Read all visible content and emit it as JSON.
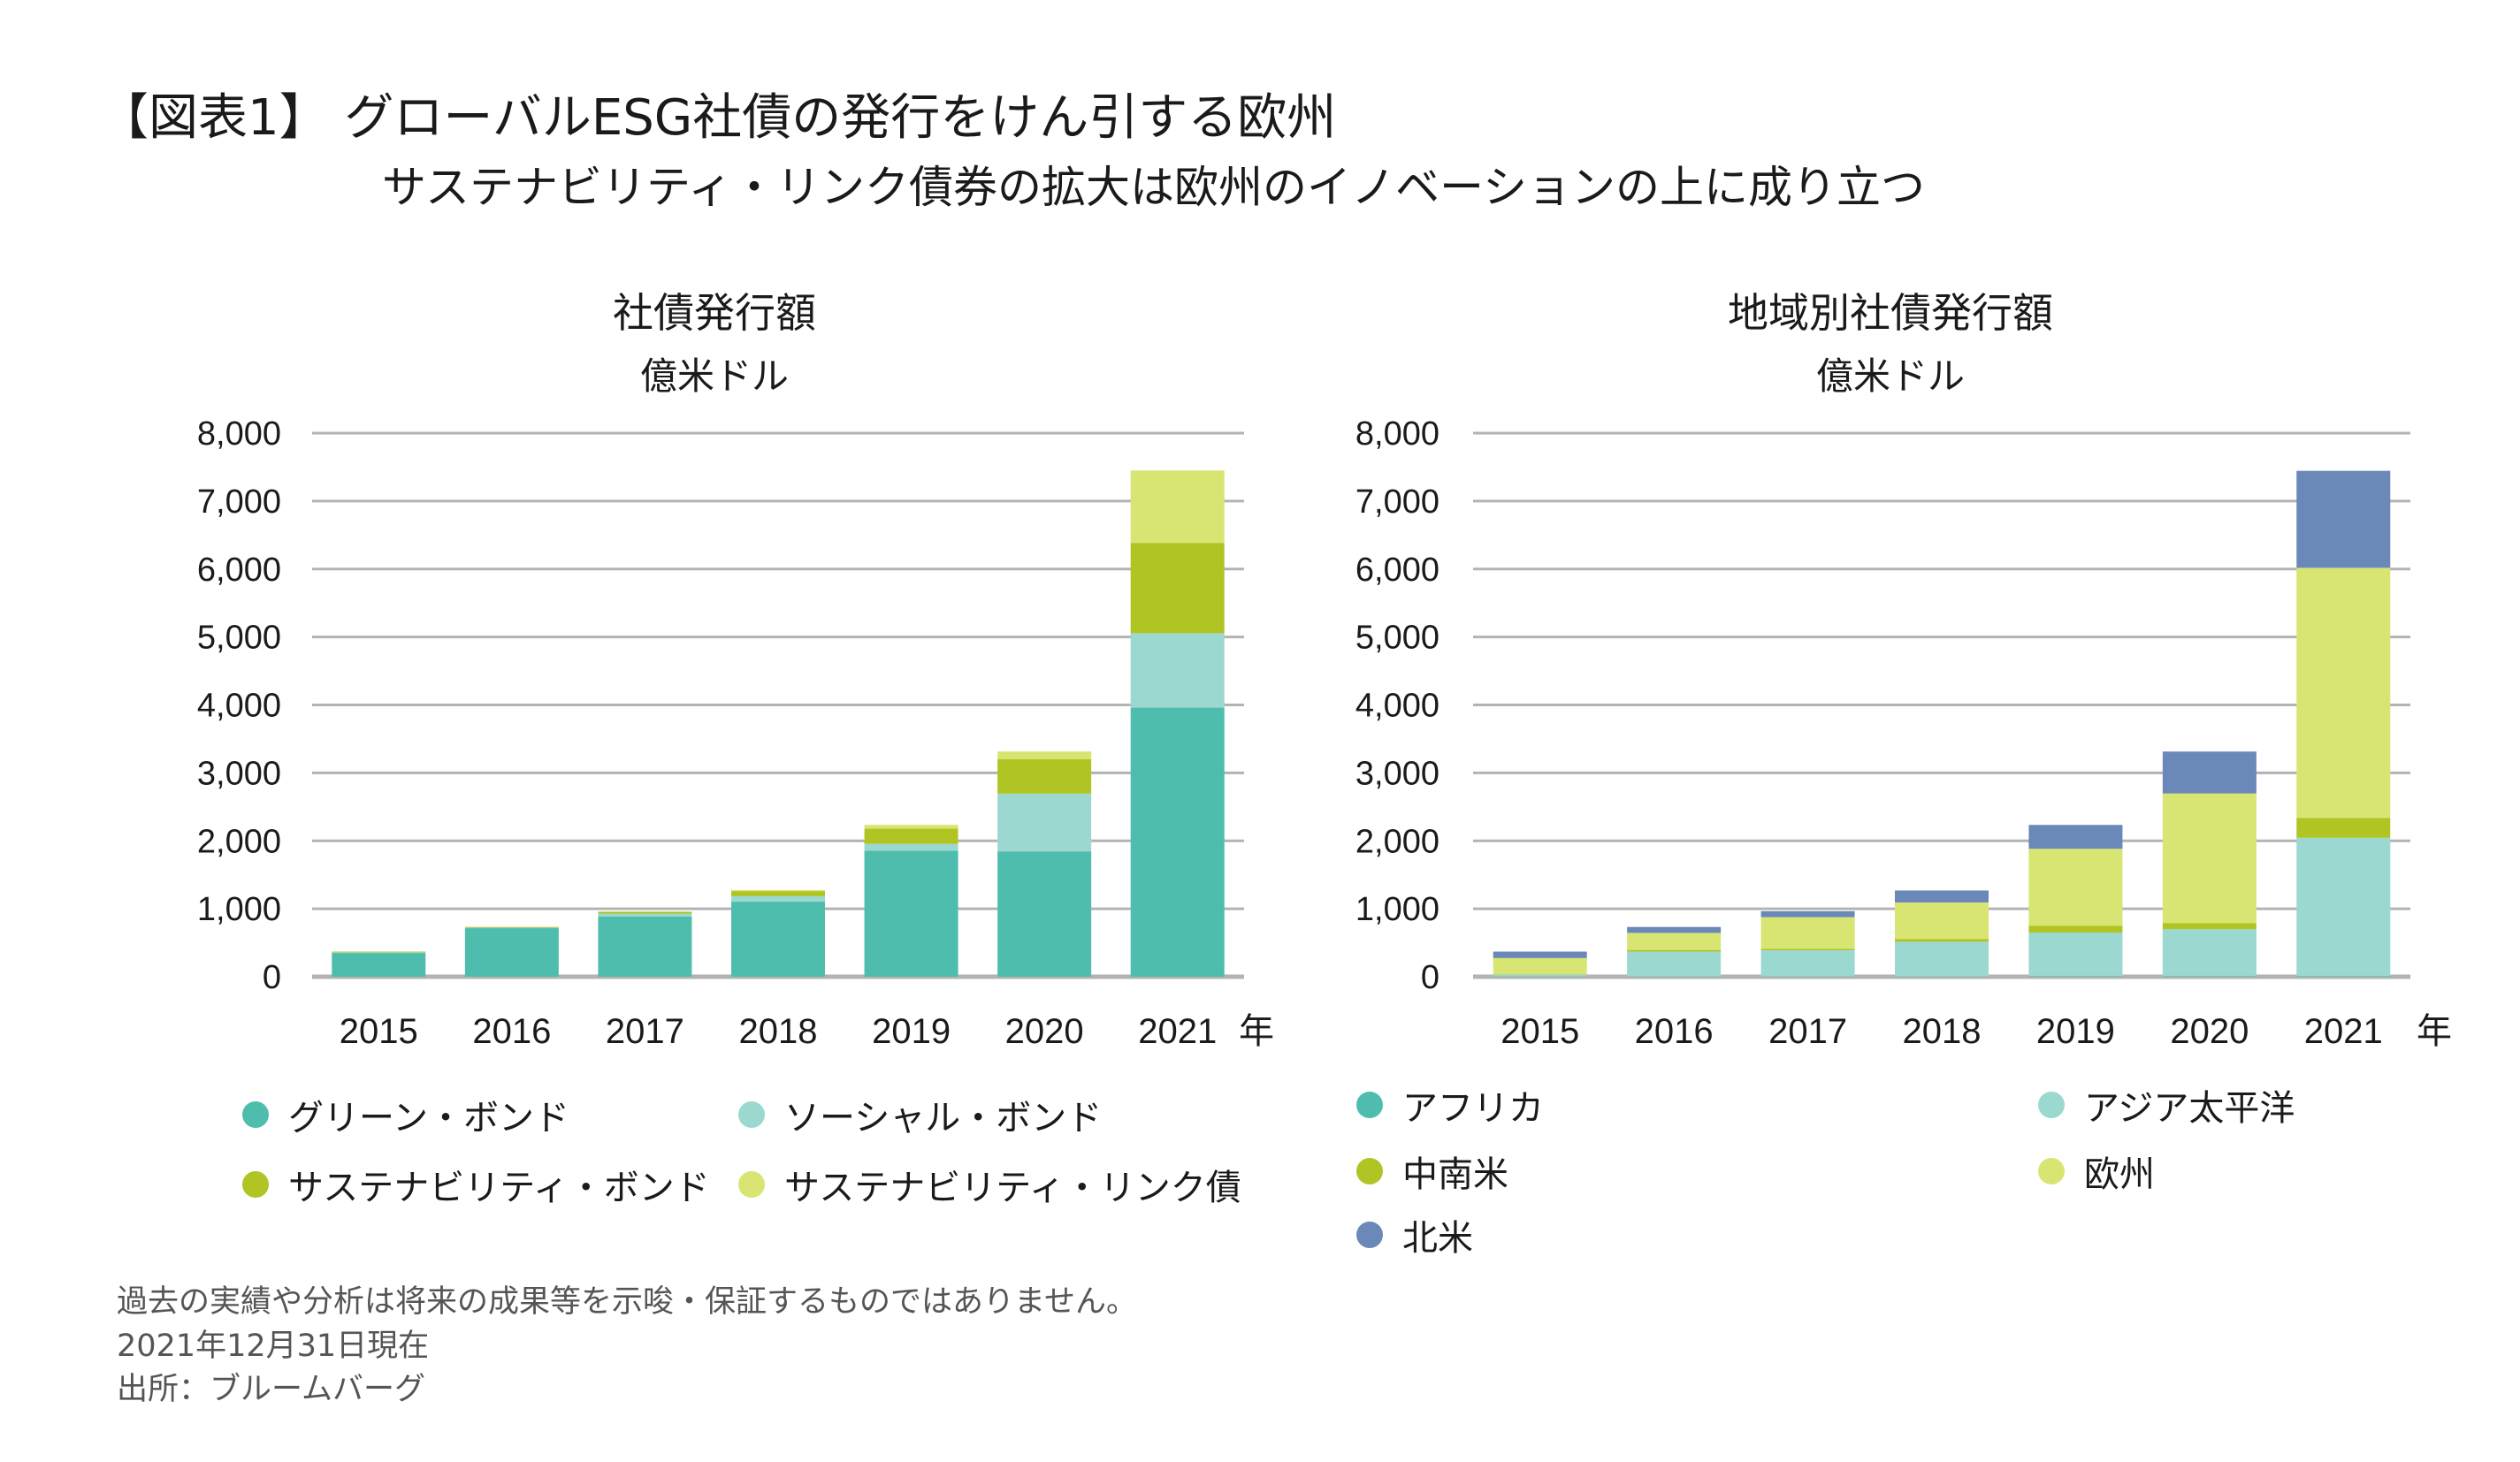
{
  "title": "【図表1】 グローバルESG社債の発行をけん引する欧州",
  "subtitle": "サステナビリティ・リンク債券の拡大は欧州のイノベーションの上に成り立つ",
  "chart_data": [
    {
      "type": "bar",
      "stacked": true,
      "title": "社債発行額",
      "ylabel": "億米ドル",
      "xlabel": "年",
      "categories": [
        "2015",
        "2016",
        "2017",
        "2018",
        "2019",
        "2020",
        "2021"
      ],
      "ylim": [
        0,
        8000
      ],
      "yticks": [
        "0",
        "1,000",
        "2,000",
        "3,000",
        "4,000",
        "5,000",
        "6,000",
        "7,000",
        "8,000"
      ],
      "grid": true,
      "legend": "bottom",
      "series": [
        {
          "name": "グリーン・ボンド",
          "color": "#4fbdae",
          "values": [
            350,
            715,
            885,
            1105,
            1855,
            1845,
            3960
          ]
        },
        {
          "name": "ソーシャル・ボンド",
          "color": "#9ad8d0",
          "values": [
            10,
            5,
            45,
            80,
            100,
            850,
            1095
          ]
        },
        {
          "name": "サステナビリティ・ボンド",
          "color": "#b0c424",
          "values": [
            10,
            12,
            25,
            75,
            225,
            505,
            1330
          ]
        },
        {
          "name": "サステナビリティ・リンク債",
          "color": "#d8e573",
          "values": [
            0,
            0,
            5,
            15,
            55,
            115,
            1065
          ]
        }
      ]
    },
    {
      "type": "bar",
      "stacked": true,
      "title": "地域別社債発行額",
      "ylabel": "億米ドル",
      "xlabel": "年",
      "categories": [
        "2015",
        "2016",
        "2017",
        "2018",
        "2019",
        "2020",
        "2021"
      ],
      "ylim": [
        0,
        8000
      ],
      "yticks": [
        "0",
        "1,000",
        "2,000",
        "3,000",
        "4,000",
        "5,000",
        "6,000",
        "7,000",
        "8,000"
      ],
      "grid": true,
      "legend": "bottom",
      "series": [
        {
          "name": "アフリカ",
          "color": "#4fbdae",
          "values": [
            5,
            5,
            5,
            5,
            10,
            10,
            10
          ]
        },
        {
          "name": "アジア太平洋",
          "color": "#9ad8d0",
          "values": [
            25,
            365,
            385,
            510,
            640,
            690,
            2035
          ]
        },
        {
          "name": "中南米",
          "color": "#b0c424",
          "values": [
            5,
            25,
            22,
            38,
            98,
            87,
            293
          ]
        },
        {
          "name": "欧州",
          "color": "#d8e573",
          "values": [
            240,
            250,
            465,
            540,
            1135,
            1910,
            3680
          ]
        },
        {
          "name": "北米",
          "color": "#6a88b8",
          "values": [
            95,
            87,
            88,
            176,
            351,
            617,
            1427
          ]
        }
      ]
    }
  ],
  "footer": {
    "disclaimer": "過去の実績や分析は将来の成果等を示唆・保証するものではありません。",
    "date": "2021年12月31日現在",
    "source": "出所：ブルームバーグ"
  }
}
